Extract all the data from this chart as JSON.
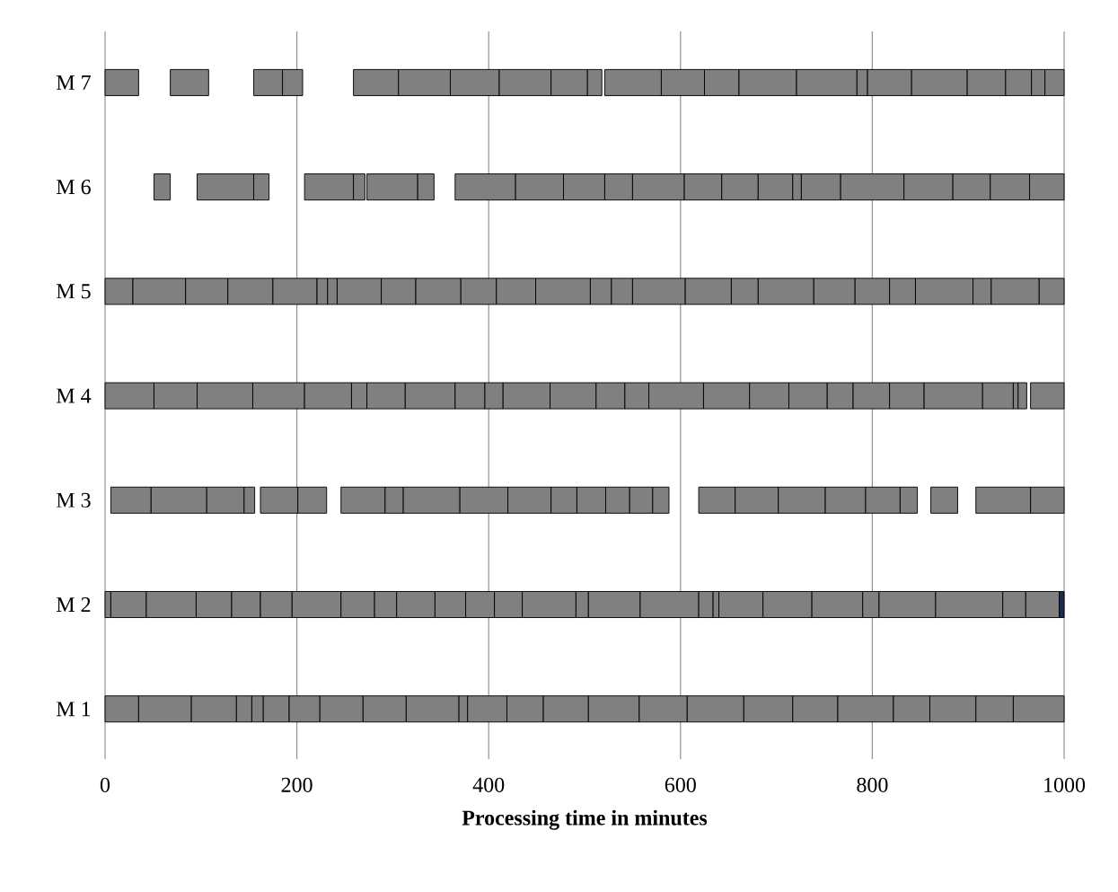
{
  "chart_data": {
    "type": "bar",
    "orientation": "horizontal",
    "categories": [
      "M 7",
      "M 6",
      "M 5",
      "M 4",
      "M 3",
      "M 2",
      "M 1"
    ],
    "xlabel": "**Processing time in minutes**",
    "xlim": [
      0,
      1000
    ],
    "xticks": [
      0,
      200,
      400,
      600,
      800,
      1000
    ],
    "grid": "x",
    "series": [
      {
        "color": "#808080",
        "base": [
          0,
          51,
          0,
          0,
          6,
          0,
          0
        ],
        "values": [
          35,
          17,
          29,
          51,
          42,
          6,
          35
        ]
      },
      {
        "color": "#808080",
        "base": [
          68,
          96,
          29,
          51,
          48,
          6,
          35
        ],
        "values": [
          40,
          59,
          55,
          45,
          58,
          37,
          55
        ]
      },
      {
        "color": "#808080",
        "base": [
          155,
          155,
          84,
          96,
          106,
          43,
          90
        ],
        "values": [
          30,
          16,
          44,
          58,
          39,
          52,
          47
        ]
      },
      {
        "color": "#808080",
        "base": [
          185,
          208,
          128,
          154,
          145,
          95,
          137
        ],
        "values": [
          21,
          51,
          47,
          54,
          11,
          37,
          16
        ]
      },
      {
        "color": "#808080",
        "base": [
          259,
          259,
          175,
          208,
          162,
          132,
          153
        ],
        "values": [
          47,
          12,
          46,
          49,
          39,
          30,
          12
        ]
      },
      {
        "color": "#808080",
        "base": [
          306,
          273,
          221,
          257,
          201,
          162,
          165
        ],
        "values": [
          54,
          53,
          11,
          16,
          30,
          33,
          27
        ]
      },
      {
        "color": "#808080",
        "base": [
          360,
          326,
          232,
          273,
          246,
          195,
          192
        ],
        "values": [
          51,
          17,
          10,
          40,
          46,
          51,
          32
        ]
      },
      {
        "color": "#808080",
        "base": [
          411,
          365,
          242,
          313,
          292,
          246,
          224
        ],
        "values": [
          54,
          63,
          46,
          52,
          19,
          35,
          45
        ]
      },
      {
        "color": "#808080",
        "base": [
          465,
          428,
          288,
          365,
          311,
          281,
          269
        ],
        "values": [
          38,
          50,
          36,
          31,
          59,
          23,
          45
        ]
      },
      {
        "color": "#808080",
        "base": [
          503,
          478,
          324,
          396,
          370,
          304,
          314
        ],
        "values": [
          15,
          43,
          47,
          19,
          50,
          40,
          55
        ]
      },
      {
        "color": "#808080",
        "base": [
          521,
          521,
          371,
          415,
          420,
          344,
          369
        ],
        "values": [
          59,
          29,
          37,
          49,
          45,
          32,
          9
        ]
      },
      {
        "color": "#808080",
        "base": [
          580,
          550,
          408,
          464,
          465,
          376,
          378
        ],
        "values": [
          45,
          54,
          41,
          48,
          27,
          30,
          41
        ]
      },
      {
        "color": "#808080",
        "base": [
          625,
          604,
          449,
          512,
          492,
          406,
          419
        ],
        "values": [
          36,
          39,
          57,
          30,
          30,
          29,
          38
        ]
      },
      {
        "color": "#808080",
        "base": [
          661,
          643,
          506,
          542,
          522,
          435,
          457
        ],
        "values": [
          60,
          38,
          22,
          25,
          25,
          56,
          47
        ]
      },
      {
        "color": "#808080",
        "base": [
          721,
          681,
          528,
          567,
          547,
          491,
          504
        ],
        "values": [
          63,
          36,
          22,
          57,
          24,
          13,
          53
        ]
      },
      {
        "color": "#808080",
        "base": [
          784,
          717,
          550,
          624,
          571,
          504,
          557
        ],
        "values": [
          11,
          9,
          55,
          48,
          17,
          54,
          50
        ]
      },
      {
        "color": "#808080",
        "base": [
          795,
          726,
          605,
          672,
          619,
          558,
          607
        ],
        "values": [
          46,
          41,
          48,
          41,
          38,
          61,
          59
        ]
      },
      {
        "color": "#808080",
        "base": [
          841,
          767,
          653,
          713,
          657,
          619,
          666
        ],
        "values": [
          58,
          66,
          28,
          40,
          45,
          15,
          51
        ]
      },
      {
        "color": "#808080",
        "base": [
          899,
          833,
          681,
          753,
          702,
          634,
          717
        ],
        "values": [
          40,
          51,
          58,
          27,
          49,
          6,
          47
        ]
      },
      {
        "color": "#808080",
        "base": [
          939,
          884,
          739,
          780,
          751,
          640,
          764
        ],
        "values": [
          27,
          39,
          43,
          38,
          42,
          46,
          58
        ]
      },
      {
        "color": "#808080",
        "base": [
          966,
          923,
          782,
          818,
          793,
          686,
          822
        ],
        "values": [
          14,
          41,
          36,
          36,
          36,
          51,
          38
        ]
      },
      {
        "color": "#808080",
        "base": [
          980,
          964,
          818,
          854,
          829,
          737,
          860
        ],
        "values": [
          20,
          36,
          27,
          61,
          18,
          53,
          48
        ]
      },
      {
        "color": "#808080",
        "base": [
          null,
          null,
          845,
          915,
          861,
          790,
          908
        ],
        "values": [
          null,
          null,
          60,
          32,
          28,
          17,
          39
        ]
      },
      {
        "color": "#808080",
        "base": [
          null,
          null,
          905,
          947,
          908,
          807,
          947
        ],
        "values": [
          null,
          null,
          19,
          5,
          57,
          59,
          53
        ]
      },
      {
        "color": "#808080",
        "base": [
          null,
          null,
          924,
          952,
          965,
          866,
          null
        ],
        "values": [
          null,
          null,
          50,
          9,
          35,
          70,
          null
        ]
      },
      {
        "color": "#808080",
        "base": [
          null,
          null,
          974,
          965,
          null,
          936,
          null
        ],
        "values": [
          null,
          null,
          26,
          35,
          null,
          24,
          null
        ]
      },
      {
        "color": "#808080",
        "base": [
          null,
          null,
          null,
          null,
          null,
          960,
          null
        ],
        "values": [
          null,
          null,
          null,
          null,
          null,
          35,
          null
        ]
      },
      {
        "color": "#1b2d4f",
        "base": [
          null,
          null,
          null,
          null,
          null,
          995,
          null
        ],
        "values": [
          null,
          null,
          null,
          null,
          null,
          5,
          null
        ]
      }
    ]
  }
}
